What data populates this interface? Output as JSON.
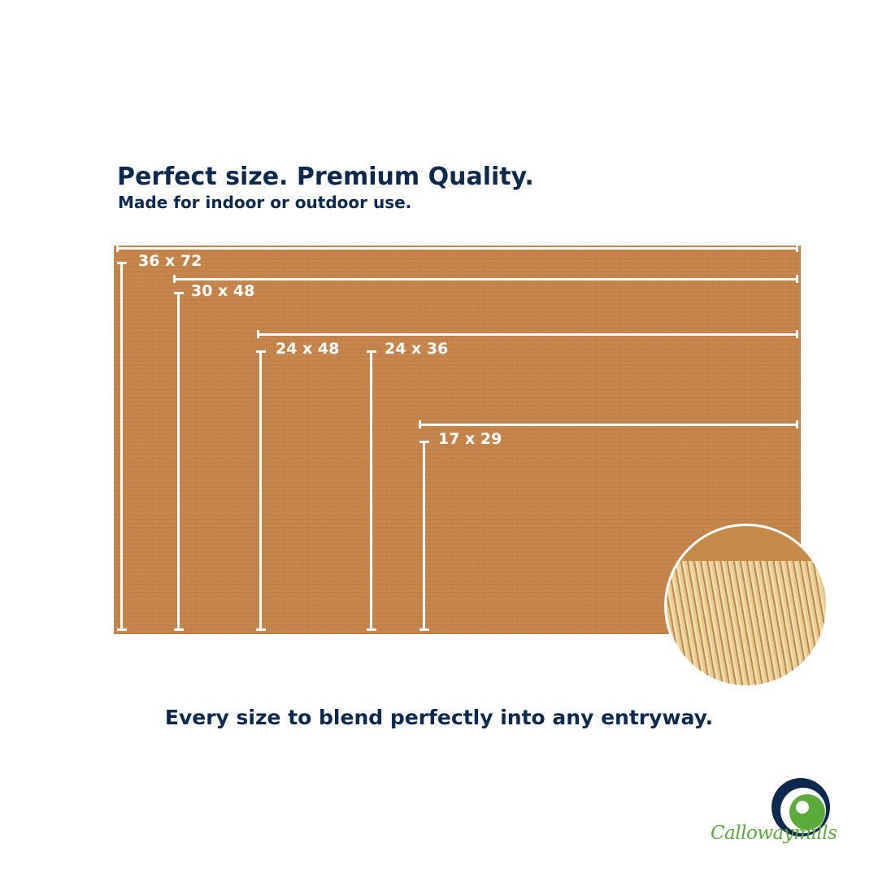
{
  "headline": "Perfect size. Premium Quality.",
  "subheadline": "Made for indoor or outdoor use.",
  "sizes": [
    "36 x 72",
    "30 x 48",
    "24 x 48",
    "24 x 36",
    "17 x 29"
  ],
  "tagline": "Every size to blend perfectly into any entryway.",
  "brand": "Callowaymills",
  "colors": {
    "navy": "#0d2a4e",
    "mat": "#c5844a",
    "brand_green": "#5aaa3c"
  }
}
